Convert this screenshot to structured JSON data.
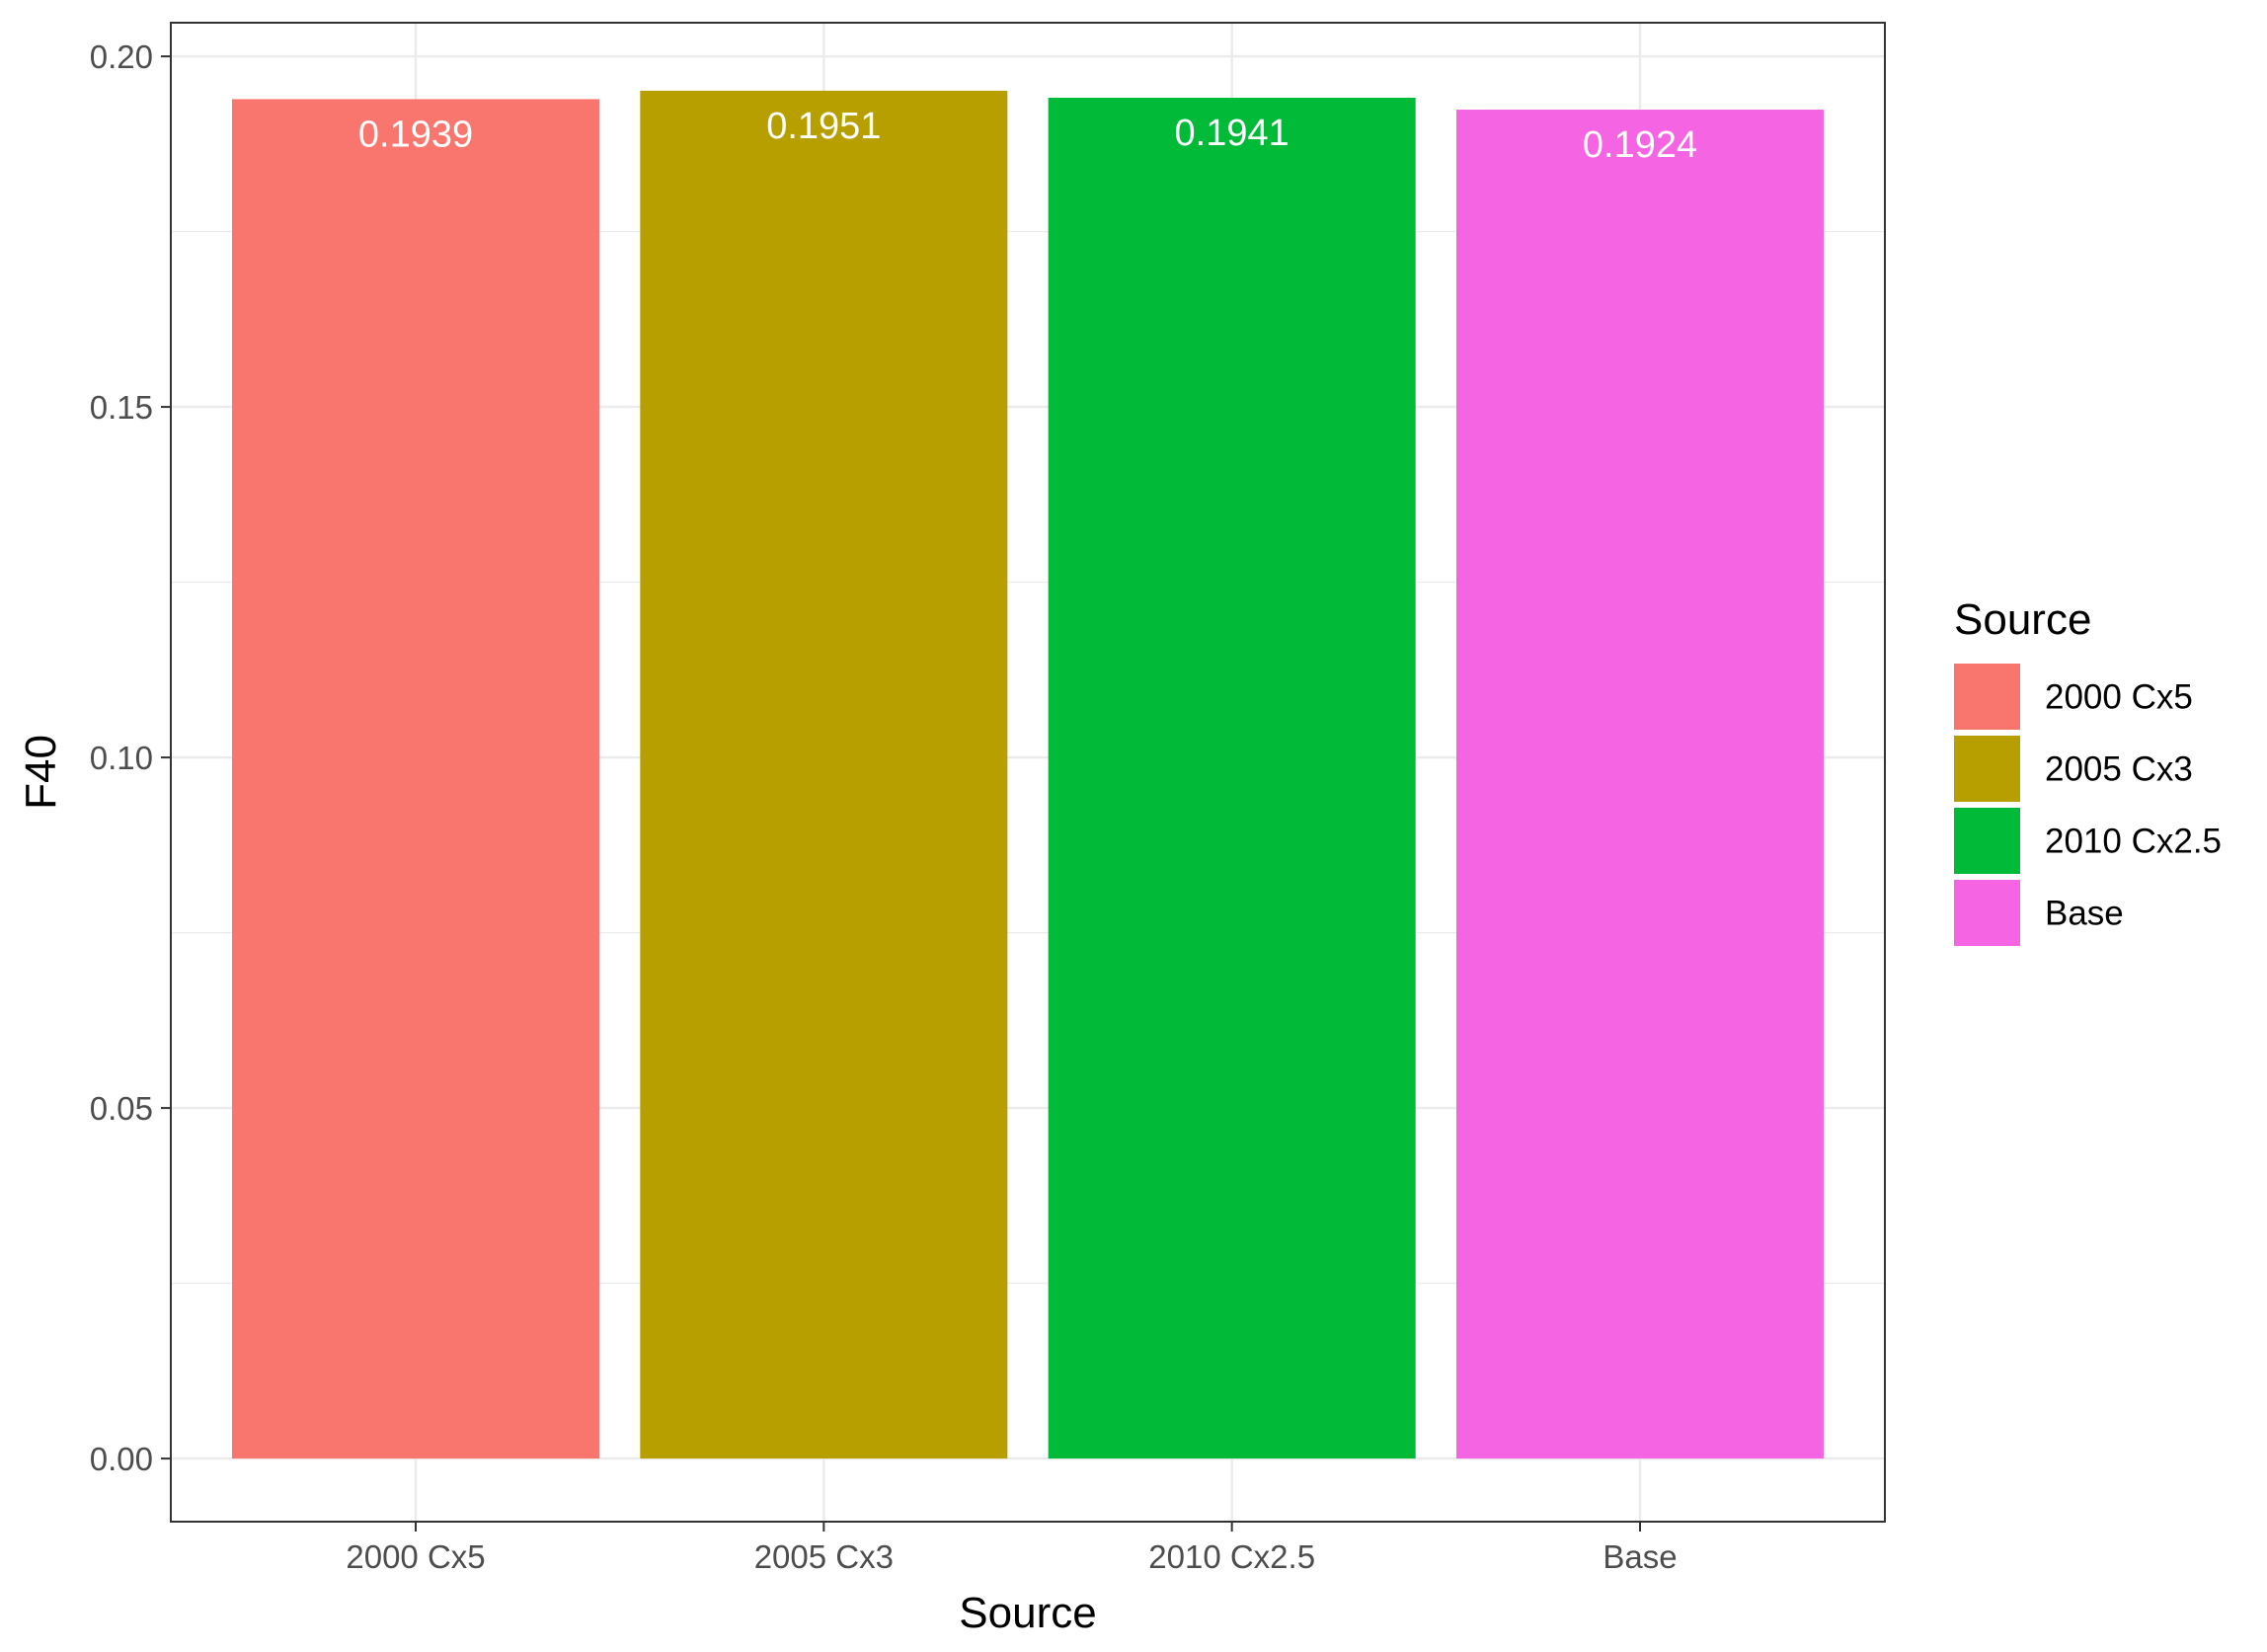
{
  "chart_data": {
    "type": "bar",
    "xlabel": "Source",
    "ylabel": "F40",
    "ylim": [
      -0.009,
      0.2048
    ],
    "yticks": [
      0.0,
      0.05,
      0.1,
      0.15,
      0.2
    ],
    "ytick_labels": [
      "0.00",
      "0.05",
      "0.10",
      "0.15",
      "0.20"
    ],
    "categories": [
      "2000 Cx5",
      "2005 Cx3",
      "2010 Cx2.5",
      "Base"
    ],
    "values": [
      0.1939,
      0.1951,
      0.1941,
      0.1924
    ],
    "data_labels": [
      "0.1939",
      "0.1951",
      "0.1941",
      "0.1924"
    ],
    "colors": [
      "#F8766D",
      "#B79F00",
      "#00BA38",
      "#F564E3"
    ],
    "grid": true,
    "legend": {
      "title": "Source",
      "position": "right",
      "entries": [
        "2000 Cx5",
        "2005 Cx3",
        "2010 Cx2.5",
        "Base"
      ]
    }
  }
}
